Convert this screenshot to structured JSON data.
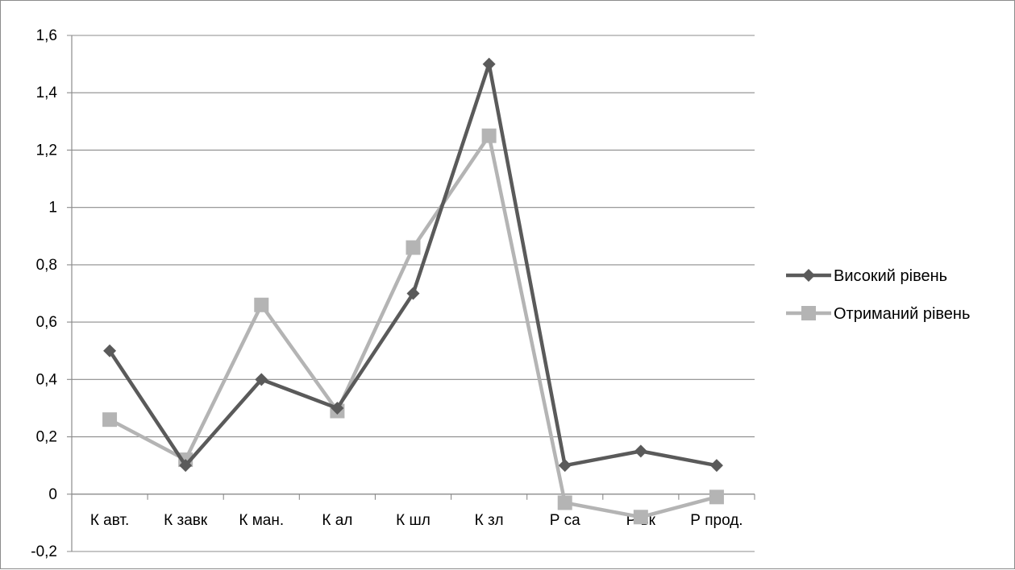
{
  "chart_data": {
    "type": "line",
    "categories": [
      "К авт.",
      "К завк",
      "К ман.",
      "К ал",
      "К шл",
      "К зл",
      "Р са",
      "Р вк",
      "Р прод."
    ],
    "series": [
      {
        "name": "Високий рівень",
        "values": [
          0.5,
          0.1,
          0.4,
          0.3,
          0.7,
          1.5,
          0.1,
          0.15,
          0.1
        ],
        "color": "#5a5a5a",
        "marker": "diamond"
      },
      {
        "name": "Отриманий рівень",
        "values": [
          0.26,
          0.12,
          0.66,
          0.29,
          0.86,
          1.25,
          -0.03,
          -0.08,
          -0.01
        ],
        "color": "#b4b4b4",
        "marker": "square"
      }
    ],
    "y_ticks": [
      "1,6",
      "1,4",
      "1,2",
      "1",
      "0,8",
      "0,6",
      "0,4",
      "0,2",
      "0",
      "-0,2"
    ],
    "ylim": [
      -0.2,
      1.6
    ],
    "grid": true,
    "legend_position": "right"
  }
}
